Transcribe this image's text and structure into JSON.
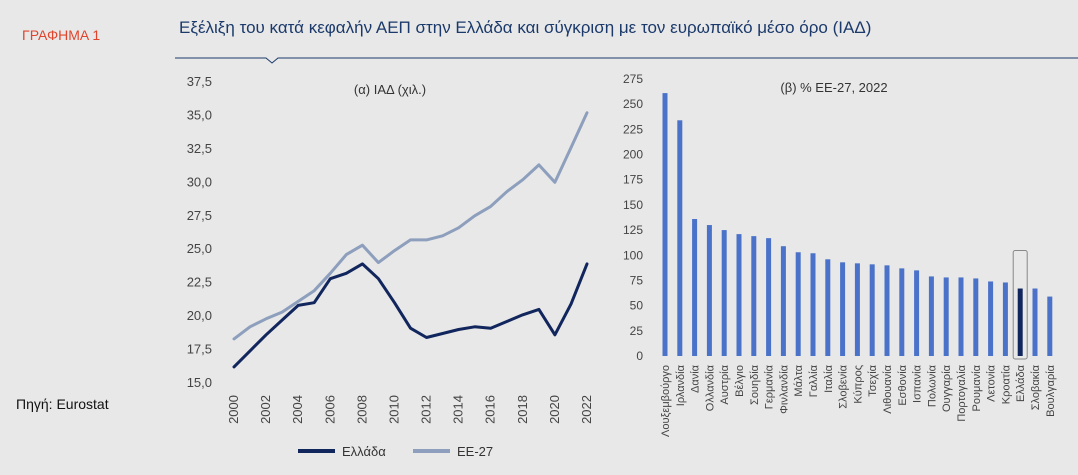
{
  "figure_label": "ΓΡΑΦΗΜΑ 1",
  "title": "Εξέλιξη του κατά κεφαλήν ΑΕΠ στην Ελλάδα και σύγκριση με τον ευρωπαϊκό μέσο όρο (ΙΑΔ)",
  "source": "Πηγή: Eurostat",
  "colors": {
    "greece": "#12265e",
    "eu27": "#8d9fbd",
    "bars": "#4a72c9",
    "greece_bar": "#12265e",
    "title": "#1b3a6b",
    "label": "#e0452c"
  },
  "chart_data": [
    {
      "type": "line",
      "title": "(α) ΙΑΔ (χιλ.)",
      "ylim": [
        15,
        37.5
      ],
      "y_ticks": [
        "15,0",
        "17,5",
        "20,0",
        "22,5",
        "25,0",
        "27,5",
        "30,0",
        "32,5",
        "35,0",
        "37,5"
      ],
      "x_ticks": [
        "2000",
        "2002",
        "2004",
        "2006",
        "2008",
        "2010",
        "2012",
        "2014",
        "2016",
        "2018",
        "2020",
        "2022"
      ],
      "x": [
        2000,
        2001,
        2002,
        2003,
        2004,
        2005,
        2006,
        2007,
        2008,
        2009,
        2010,
        2011,
        2012,
        2013,
        2014,
        2015,
        2016,
        2017,
        2018,
        2019,
        2020,
        2021,
        2022
      ],
      "series": [
        {
          "name": "Ελλάδα",
          "values": [
            16.2,
            17.4,
            18.6,
            19.7,
            20.8,
            21.0,
            22.8,
            23.2,
            23.9,
            22.8,
            21.0,
            19.1,
            18.4,
            18.7,
            19.0,
            19.2,
            19.1,
            19.6,
            20.1,
            20.5,
            18.6,
            20.9,
            23.9
          ]
        },
        {
          "name": "ΕΕ-27",
          "values": [
            18.3,
            19.2,
            19.8,
            20.3,
            21.1,
            21.9,
            23.2,
            24.6,
            25.3,
            24.0,
            24.9,
            25.7,
            25.7,
            26.0,
            26.6,
            27.5,
            28.2,
            29.3,
            30.2,
            31.3,
            30.0,
            32.6,
            35.2
          ]
        }
      ]
    },
    {
      "type": "bar",
      "title": "(β) % ΕΕ-27, 2022",
      "ylim": [
        0,
        275
      ],
      "y_ticks": [
        "0",
        "25",
        "50",
        "75",
        "100",
        "125",
        "150",
        "175",
        "200",
        "225",
        "250",
        "275"
      ],
      "categories": [
        "Λουξεμβούργο",
        "Ιρλανδία",
        "Δανία",
        "Ολλανδία",
        "Αυστρία",
        "Βέλγιο",
        "Σουηδία",
        "Γερμανία",
        "Φινλανδία",
        "Μάλτα",
        "Γαλλία",
        "Ιταλία",
        "Σλοβενία",
        "Κύπρος",
        "Τσεχία",
        "Λιθουανία",
        "Εσθονία",
        "Ισπανία",
        "Πολωνία",
        "Ουγγαρία",
        "Πορτογαλία",
        "Ρουμανία",
        "Λετονία",
        "Κροατία",
        "Ελλάδα",
        "Σλοβακία",
        "Βουλγαρία"
      ],
      "values": [
        261,
        234,
        136,
        130,
        125,
        121,
        119,
        117,
        109,
        103,
        102,
        96,
        93,
        92,
        91,
        90,
        87,
        85,
        79,
        78,
        78,
        77,
        74,
        73,
        67,
        67,
        59
      ],
      "highlight": "Ελλάδα"
    }
  ]
}
